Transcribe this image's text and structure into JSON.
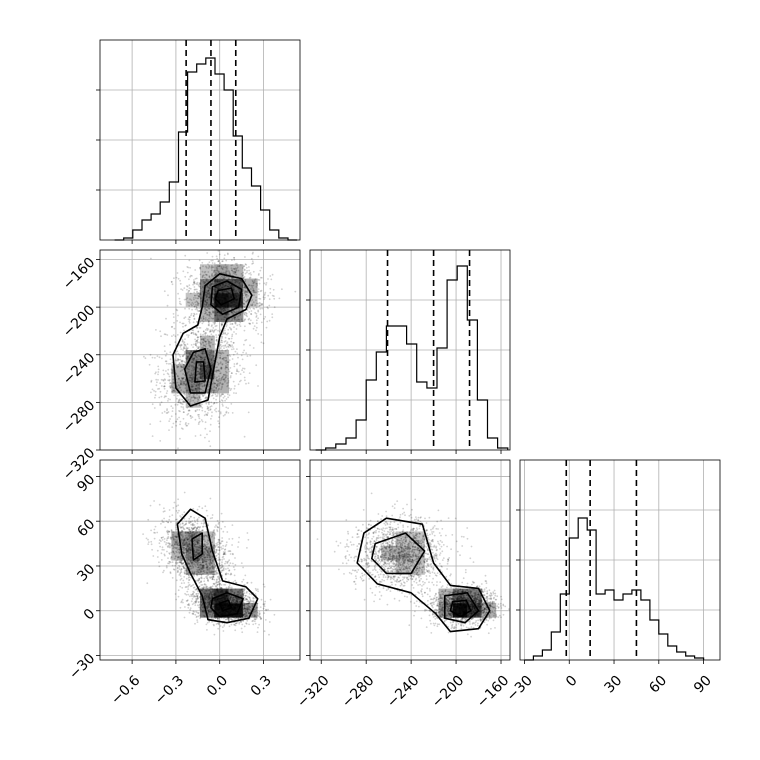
{
  "chart_data": [
    {
      "type": "histogram",
      "panel": "diag-0",
      "grid": true,
      "xlim": [
        -0.82,
        0.55
      ],
      "ylim": [
        0,
        1.0
      ],
      "bin_edges": [
        -0.72,
        -0.6575,
        -0.595,
        -0.5325,
        -0.47,
        -0.4075,
        -0.345,
        -0.2825,
        -0.22,
        -0.1575,
        -0.095,
        -0.0325,
        0.03,
        0.0925,
        0.155,
        0.2175,
        0.28,
        0.3425,
        0.405,
        0.4675,
        0.53
      ],
      "counts": [
        0.0,
        0.01,
        0.05,
        0.1,
        0.13,
        0.19,
        0.29,
        0.54,
        0.84,
        0.88,
        0.91,
        0.83,
        0.75,
        0.52,
        0.36,
        0.27,
        0.15,
        0.05,
        0.01,
        0.0
      ],
      "quantiles": [
        -0.23,
        -0.06,
        0.11
      ]
    },
    {
      "type": "histogram",
      "panel": "diag-1",
      "grid": true,
      "xlim": [
        -330,
        -152
      ],
      "ylim": [
        0,
        1.0
      ],
      "bin_edges": [
        -325,
        -316,
        -307,
        -298,
        -289,
        -280,
        -271,
        -262,
        -253,
        -244,
        -235,
        -226,
        -217,
        -208,
        -199,
        -190,
        -181,
        -172,
        -163,
        -154
      ],
      "counts": [
        0.0,
        0.01,
        0.03,
        0.06,
        0.15,
        0.35,
        0.49,
        0.62,
        0.62,
        0.53,
        0.34,
        0.31,
        0.51,
        0.85,
        0.92,
        0.65,
        0.25,
        0.06,
        0.01
      ],
      "quantiles": [
        -261,
        -220,
        -188
      ]
    },
    {
      "type": "histogram",
      "panel": "diag-2",
      "grid": true,
      "xlim": [
        -33,
        101
      ],
      "ylim": [
        0,
        1.0
      ],
      "bin_edges": [
        -30,
        -24,
        -18,
        -12,
        -6,
        0,
        6,
        12,
        18,
        24,
        30,
        36,
        42,
        48,
        54,
        60,
        66,
        72,
        78,
        84,
        90
      ],
      "counts": [
        0.0,
        0.02,
        0.05,
        0.14,
        0.33,
        0.61,
        0.71,
        0.65,
        0.33,
        0.35,
        0.3,
        0.33,
        0.35,
        0.3,
        0.2,
        0.13,
        0.07,
        0.04,
        0.02,
        0.01
      ],
      "quantiles": [
        -2,
        14,
        45
      ]
    },
    {
      "type": "scatter_density",
      "panel": "x0-x1",
      "grid": true,
      "xlim": [
        -0.82,
        0.55
      ],
      "ylim": [
        -320,
        -152
      ],
      "modes": [
        {
          "x": 0.03,
          "y": -190,
          "sx": 0.13,
          "sy": 14,
          "rho": 0.0,
          "weight": 0.52
        },
        {
          "x": -0.14,
          "y": -255,
          "sx": 0.13,
          "sy": 20,
          "rho": 0.15,
          "weight": 0.48
        }
      ],
      "contours": [
        [
          [
            -0.1,
            -182
          ],
          [
            0.0,
            -172
          ],
          [
            0.15,
            -176
          ],
          [
            0.22,
            -190
          ],
          [
            0.18,
            -202
          ],
          [
            0.05,
            -210
          ],
          [
            0.0,
            -225
          ],
          [
            -0.05,
            -258
          ],
          [
            -0.08,
            -278
          ],
          [
            -0.2,
            -283
          ],
          [
            -0.3,
            -268
          ],
          [
            -0.32,
            -240
          ],
          [
            -0.25,
            -222
          ],
          [
            -0.15,
            -215
          ],
          [
            -0.12,
            -200
          ]
        ],
        [
          [
            -0.05,
            -183
          ],
          [
            0.05,
            -178
          ],
          [
            0.15,
            -185
          ],
          [
            0.13,
            -200
          ],
          [
            0.02,
            -206
          ],
          [
            -0.06,
            -198
          ]
        ],
        [
          [
            -0.01,
            -186
          ],
          [
            0.08,
            -184
          ],
          [
            0.1,
            -193
          ],
          [
            0.01,
            -198
          ],
          [
            -0.03,
            -193
          ]
        ],
        [
          [
            -0.18,
            -238
          ],
          [
            -0.1,
            -235
          ],
          [
            -0.06,
            -252
          ],
          [
            -0.1,
            -272
          ],
          [
            -0.2,
            -272
          ],
          [
            -0.24,
            -252
          ]
        ],
        [
          [
            -0.16,
            -246
          ],
          [
            -0.11,
            -246
          ],
          [
            -0.1,
            -262
          ],
          [
            -0.17,
            -263
          ]
        ]
      ],
      "ticks_y": [
        -160,
        -200,
        -240,
        -280,
        -320
      ]
    },
    {
      "type": "scatter_density",
      "panel": "x0-x2",
      "grid": true,
      "xlim": [
        -0.82,
        0.55
      ],
      "ylim": [
        -33,
        101
      ],
      "modes": [
        {
          "x": -0.15,
          "y": 40,
          "sx": 0.12,
          "sy": 12,
          "rho": -0.3,
          "weight": 0.45
        },
        {
          "x": 0.04,
          "y": 4,
          "sx": 0.11,
          "sy": 6,
          "rho": -0.2,
          "weight": 0.55
        }
      ],
      "contours": [
        [
          [
            -0.29,
            58
          ],
          [
            -0.2,
            68
          ],
          [
            -0.1,
            62
          ],
          [
            -0.05,
            40
          ],
          [
            0.02,
            20
          ],
          [
            0.18,
            16
          ],
          [
            0.26,
            8
          ],
          [
            0.2,
            -5
          ],
          [
            0.05,
            -8
          ],
          [
            -0.08,
            -6
          ],
          [
            -0.12,
            10
          ],
          [
            -0.2,
            25
          ],
          [
            -0.26,
            38
          ]
        ],
        [
          [
            -0.05,
            8
          ],
          [
            0.05,
            12
          ],
          [
            0.16,
            8
          ],
          [
            0.12,
            -2
          ],
          [
            0.0,
            -4
          ],
          [
            -0.06,
            2
          ]
        ],
        [
          [
            -0.19,
            48
          ],
          [
            -0.12,
            52
          ],
          [
            -0.12,
            38
          ],
          [
            -0.18,
            34
          ]
        ],
        [
          [
            0.0,
            5
          ],
          [
            0.06,
            7
          ],
          [
            0.08,
            2
          ],
          [
            0.02,
            0
          ]
        ]
      ],
      "ticks_y": [
        90,
        60,
        30,
        0,
        -30
      ],
      "ticks_x": [
        -0.6,
        -0.3,
        0.0,
        0.3
      ]
    },
    {
      "type": "scatter_density",
      "panel": "x1-x2",
      "grid": true,
      "xlim": [
        -330,
        -152
      ],
      "ylim": [
        -33,
        101
      ],
      "modes": [
        {
          "x": -250,
          "y": 38,
          "sx": 20,
          "sy": 12,
          "rho": 0.0,
          "weight": 0.48
        },
        {
          "x": -193,
          "y": 3,
          "sx": 14,
          "sy": 6,
          "rho": 0.0,
          "weight": 0.52
        }
      ],
      "contours": [
        [
          [
            -282,
            52
          ],
          [
            -262,
            62
          ],
          [
            -230,
            58
          ],
          [
            -220,
            32
          ],
          [
            -205,
            17
          ],
          [
            -180,
            15
          ],
          [
            -170,
            0
          ],
          [
            -180,
            -12
          ],
          [
            -205,
            -14
          ],
          [
            -218,
            -2
          ],
          [
            -240,
            12
          ],
          [
            -270,
            18
          ],
          [
            -288,
            32
          ]
        ],
        [
          [
            -272,
            45
          ],
          [
            -245,
            52
          ],
          [
            -228,
            40
          ],
          [
            -240,
            25
          ],
          [
            -262,
            25
          ],
          [
            -275,
            35
          ]
        ],
        [
          [
            -210,
            10
          ],
          [
            -190,
            12
          ],
          [
            -180,
            0
          ],
          [
            -192,
            -8
          ],
          [
            -210,
            -5
          ]
        ],
        [
          [
            -203,
            6
          ],
          [
            -191,
            7
          ],
          [
            -187,
            0
          ],
          [
            -196,
            -4
          ],
          [
            -205,
            0
          ]
        ]
      ],
      "ticks_x": [
        -320,
        -280,
        -240,
        -200,
        -160
      ]
    }
  ],
  "axes": {
    "x0_ticks": [
      "−0.6",
      "−0.3",
      "0.0",
      "0.3"
    ],
    "x1_ticks": [
      "−320",
      "−280",
      "−240",
      "−200",
      "−160"
    ],
    "x2_ticks": [
      "−30",
      "0",
      "30",
      "60",
      "90"
    ],
    "y1_ticks": [
      "−160",
      "−200",
      "−240",
      "−280",
      "−320"
    ],
    "y2_ticks": [
      "90",
      "60",
      "30",
      "0",
      "−30"
    ]
  }
}
